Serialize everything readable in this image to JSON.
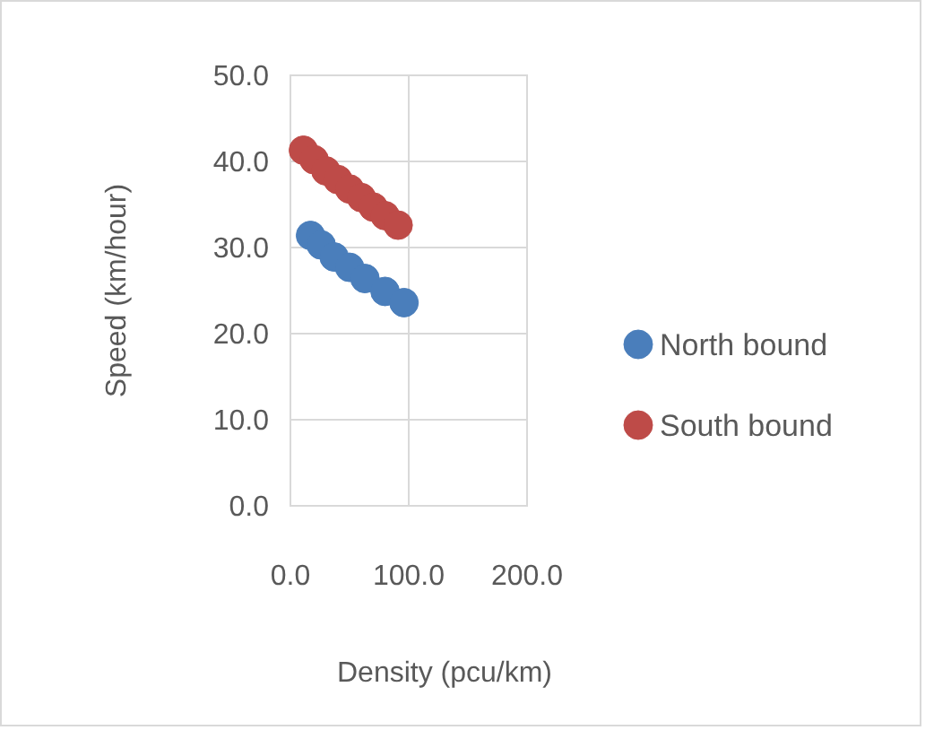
{
  "chart_data": {
    "type": "scatter",
    "xlabel": "Density (pcu/km)",
    "ylabel": "Speed (km/hour)",
    "xlim": [
      0,
      200
    ],
    "xticks": [
      {
        "value": 0,
        "label": "0.0"
      },
      {
        "value": 100,
        "label": "100.0"
      },
      {
        "value": 200,
        "label": "200.0"
      }
    ],
    "ylim": [
      0,
      50
    ],
    "yticks": [
      {
        "value": 0,
        "label": "0.0"
      },
      {
        "value": 10,
        "label": "10.0"
      },
      {
        "value": 20,
        "label": "20.0"
      },
      {
        "value": 30,
        "label": "30.0"
      },
      {
        "value": 40,
        "label": "40.0"
      },
      {
        "value": 50,
        "label": "50.0"
      }
    ],
    "grid": true,
    "legend": "right",
    "marker": "circle",
    "series": [
      {
        "name": "North bound",
        "color": "#4a7ebb",
        "x": [
          17,
          26,
          37,
          50,
          63,
          80,
          96
        ],
        "values": [
          31.4,
          30.3,
          28.9,
          27.7,
          26.4,
          24.9,
          23.6
        ]
      },
      {
        "name": "South bound",
        "color": "#be4b48",
        "x": [
          11,
          20,
          30,
          40,
          50,
          60,
          70,
          80,
          91
        ],
        "values": [
          41.3,
          40.2,
          38.9,
          37.9,
          36.8,
          35.8,
          34.7,
          33.7,
          32.6
        ]
      }
    ]
  }
}
